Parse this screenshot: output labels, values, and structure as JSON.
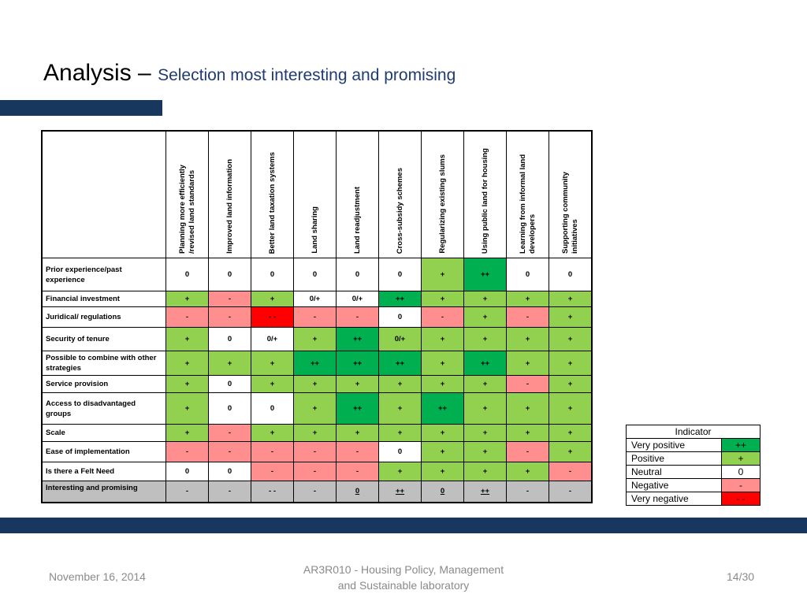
{
  "slide": {
    "title_main": "Analysis – ",
    "title_sub": "Selection most interesting and promising"
  },
  "matrix": {
    "columns": [
      "Planning more efficiently /revised land standards",
      "Improved land information",
      "Better land taxation systems",
      "Land sharing",
      "Land readjustment",
      "Cross-subsidy schemes",
      "Regularizing existing slums",
      "Using public land for housing",
      "Learning from informal land developers",
      "Supporting community initiatives"
    ],
    "rows": [
      {
        "label": "Prior experience/past experience",
        "values": [
          "0",
          "0",
          "0",
          "0",
          "0",
          "0",
          "+",
          "++",
          "0",
          "0"
        ],
        "levels": [
          "n",
          "n",
          "n",
          "n",
          "n",
          "n",
          "p",
          "vp",
          "n",
          "n"
        ]
      },
      {
        "label": "Financial investment",
        "values": [
          "+",
          "-",
          "+",
          "0/+",
          "0/+",
          "++",
          "+",
          "+",
          "+",
          "+"
        ],
        "levels": [
          "p",
          "neg",
          "p",
          "n",
          "n",
          "vp",
          "p",
          "p",
          "p",
          "p"
        ]
      },
      {
        "label": "Juridical/ regulations",
        "values": [
          "-",
          "-",
          "- -",
          "-",
          "-",
          "0",
          "-",
          "+",
          "-",
          "+"
        ],
        "levels": [
          "neg",
          "neg",
          "vneg",
          "neg",
          "neg",
          "n",
          "neg",
          "p",
          "neg",
          "p"
        ]
      },
      {
        "label": "Security of tenure",
        "values": [
          "+",
          "0",
          "0/+",
          "+",
          "++",
          "0/+",
          "+",
          "+",
          "+",
          "+"
        ],
        "levels": [
          "p",
          "n",
          "n",
          "p",
          "vp",
          "p",
          "p",
          "p",
          "p",
          "p"
        ]
      },
      {
        "label": "Possible to combine with other strategies",
        "values": [
          "+",
          "+",
          "+",
          "++",
          "++",
          "++",
          "+",
          "++",
          "+",
          "+"
        ],
        "levels": [
          "p",
          "p",
          "p",
          "vp",
          "vp",
          "vp",
          "p",
          "vp",
          "p",
          "p"
        ]
      },
      {
        "label": "Service provision",
        "values": [
          "+",
          "0",
          "+",
          "+",
          "+",
          "+",
          "+",
          "+",
          "-",
          "+"
        ],
        "levels": [
          "p",
          "n",
          "p",
          "p",
          "p",
          "p",
          "p",
          "p",
          "neg",
          "p"
        ]
      },
      {
        "label": "Access to disadvantaged groups",
        "values": [
          "+",
          "0",
          "0",
          "+",
          "++",
          "+",
          "++",
          "+",
          "+",
          "+"
        ],
        "levels": [
          "p",
          "n",
          "n",
          "p",
          "vp",
          "p",
          "vp",
          "p",
          "p",
          "p"
        ]
      },
      {
        "label": "Scale",
        "values": [
          "+",
          "-",
          "+",
          "+",
          "+",
          "+",
          "+",
          "+",
          "+",
          "+"
        ],
        "levels": [
          "p",
          "neg",
          "p",
          "p",
          "p",
          "p",
          "p",
          "p",
          "p",
          "p"
        ]
      },
      {
        "label": "Ease of implementation",
        "values": [
          "-",
          "-",
          "-",
          "-",
          "-",
          "0",
          "+",
          "+",
          "-",
          "+"
        ],
        "levels": [
          "neg",
          "neg",
          "neg",
          "neg",
          "neg",
          "n",
          "p",
          "p",
          "neg",
          "p"
        ]
      },
      {
        "label": "Is there a Felt Need",
        "values": [
          "0",
          "0",
          "-",
          "-",
          "-",
          "+",
          "+",
          "+",
          "+",
          "-"
        ],
        "levels": [
          "n",
          "n",
          "neg",
          "neg",
          "neg",
          "p",
          "p",
          "p",
          "p",
          "neg"
        ]
      }
    ],
    "summary": {
      "label": "Interesting and promising",
      "values": [
        "-",
        "-",
        "- -",
        "-",
        "0",
        "++",
        "0",
        "++",
        "-",
        "-"
      ],
      "underline": [
        false,
        false,
        false,
        false,
        true,
        true,
        true,
        true,
        false,
        false
      ]
    }
  },
  "legend": {
    "header": "Indicator",
    "items": [
      {
        "name": "Very positive",
        "symbol": "++",
        "level": "vp"
      },
      {
        "name": "Positive",
        "symbol": "+",
        "level": "p"
      },
      {
        "name": "Neutral",
        "symbol": "0",
        "level": "n"
      },
      {
        "name": "Negative",
        "symbol": "-",
        "level": "neg"
      },
      {
        "name": "Very negative",
        "symbol": "- -",
        "level": "vneg"
      }
    ]
  },
  "colors": {
    "very_positive": "#00b050",
    "positive": "#92d050",
    "neutral": "#ffffff",
    "negative": "#ff8f8f",
    "very_negative": "#ff0000",
    "summary_row": "#bfbfbf",
    "accent_bar": "#17375e",
    "subtitle": "#1f3b73"
  },
  "footer": {
    "date": "November 16, 2014",
    "course_line1": "AR3R010 - Housing Policy, Management",
    "course_line2": "and Sustainable laboratory",
    "page": "14/30"
  }
}
